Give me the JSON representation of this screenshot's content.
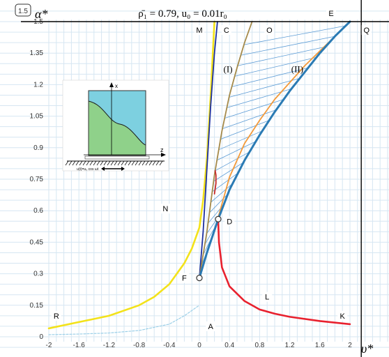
{
  "chart_data": {
    "type": "line",
    "title": "ρ̄₁ = 0.79, u₀ = 0.01r₀",
    "badge": "1.5",
    "xlabel": "υ*",
    "ylabel": "α*",
    "xlim": [
      -2,
      2.5
    ],
    "ylim": [
      0,
      1.5
    ],
    "x_ticks": [
      "-2",
      "-1.6",
      "-1.2",
      "-0.8",
      "-0.4",
      "0",
      "0.4",
      "0.8",
      "1.2",
      "1.6",
      "2"
    ],
    "y_ticks": [
      "0",
      "0.15",
      "0.3",
      "0.45",
      "0.6",
      "0.75",
      "0.9",
      "1.05",
      "1.2",
      "1.35",
      "1.5"
    ],
    "grid": true,
    "series": [
      {
        "color": "#f3e21a",
        "x": [
          -2,
          -1.6,
          -1.2,
          -0.8,
          -0.6,
          -0.4,
          -0.2,
          -0.1,
          0,
          0.05,
          0.1,
          0.15,
          0.2
        ],
        "y": [
          0.04,
          0.07,
          0.1,
          0.15,
          0.19,
          0.25,
          0.35,
          0.42,
          0.52,
          0.65,
          0.85,
          1.15,
          1.5
        ]
      },
      {
        "color": "#e8212e",
        "x": [
          0.25,
          0.26,
          0.3,
          0.4,
          0.6,
          0.8,
          1.0,
          1.2,
          1.6,
          2.0
        ],
        "y": [
          0.55,
          0.45,
          0.33,
          0.24,
          0.17,
          0.13,
          0.11,
          0.095,
          0.075,
          0.06
        ]
      },
      {
        "color": "#1d2f9e",
        "x": [
          0,
          0.05,
          0.1,
          0.15,
          0.2,
          0.24
        ],
        "y": [
          0.28,
          0.5,
          0.8,
          1.1,
          1.35,
          1.5
        ]
      },
      {
        "color": "#a58a4a",
        "x": [
          0,
          0.1,
          0.2,
          0.3,
          0.4,
          0.5,
          0.6,
          0.7
        ],
        "y": [
          0.28,
          0.5,
          0.77,
          0.98,
          1.15,
          1.28,
          1.4,
          1.5
        ]
      },
      {
        "color": "#f39a3a",
        "x": [
          0.22,
          0.4,
          0.6,
          0.8,
          1.0,
          1.2,
          1.4,
          1.6,
          1.8,
          2.0
        ],
        "y": [
          0.53,
          0.76,
          0.92,
          1.03,
          1.13,
          1.21,
          1.29,
          1.36,
          1.43,
          1.5
        ]
      },
      {
        "color": "#2b7bb4",
        "x": [
          0,
          0.1,
          0.25,
          0.4,
          0.6,
          0.8,
          1.0,
          1.2,
          1.4,
          1.6,
          1.8,
          2.0
        ],
        "y": [
          0.28,
          0.4,
          0.56,
          0.7,
          0.84,
          0.96,
          1.07,
          1.17,
          1.26,
          1.35,
          1.43,
          1.5
        ]
      },
      {
        "color": "#c62828",
        "x": [
          0.2,
          0.22,
          0.22,
          0.21
        ],
        "y": [
          0.68,
          0.73,
          0.77,
          0.79
        ]
      },
      {
        "color": "#9cd0e8",
        "x": [
          -2,
          -1.6,
          -1.2,
          -0.8,
          -0.4,
          -0.2,
          0
        ],
        "y": [
          0.01,
          0.013,
          0.018,
          0.03,
          0.06,
          0.1,
          0.15
        ]
      }
    ],
    "vertical_line": {
      "x": 2.15,
      "color": "#000000"
    },
    "horizontal_line": {
      "y": 1.5,
      "color": "#000000"
    },
    "hatched_region": {
      "between": [
        "(I)",
        "(II)"
      ],
      "color": "#5b9bd5"
    },
    "markers": [
      {
        "x": 0,
        "y": 0.28
      },
      {
        "x": 0.25,
        "y": 0.56
      }
    ],
    "point_labels": [
      {
        "text": "M",
        "x": 0.0,
        "y": 1.46
      },
      {
        "text": "C",
        "x": 0.36,
        "y": 1.46
      },
      {
        "text": "O",
        "x": 0.93,
        "y": 1.46
      },
      {
        "text": "E",
        "x": 1.75,
        "y": 1.54
      },
      {
        "text": "Q",
        "x": 2.22,
        "y": 1.46
      },
      {
        "text": "N",
        "x": -0.45,
        "y": 0.61
      },
      {
        "text": "D",
        "x": 0.4,
        "y": 0.55
      },
      {
        "text": "F",
        "x": -0.2,
        "y": 0.28
      },
      {
        "text": "L",
        "x": 0.9,
        "y": 0.19
      },
      {
        "text": "K",
        "x": 1.9,
        "y": 0.1
      },
      {
        "text": "R",
        "x": -1.9,
        "y": 0.1
      },
      {
        "text": "A",
        "x": 0.15,
        "y": 0.05
      }
    ],
    "curve_labels": [
      {
        "text": "(I)",
        "x": 0.38,
        "y": 1.26
      },
      {
        "text": "(II)",
        "x": 1.3,
        "y": 1.26
      }
    ],
    "inset": {
      "axis_x_label": "x",
      "axis_z_label": "z",
      "caption": "u(t)=u₀ cos ωt",
      "water_color": "#7dd0e0",
      "fill_color": "#8fd18a"
    }
  }
}
